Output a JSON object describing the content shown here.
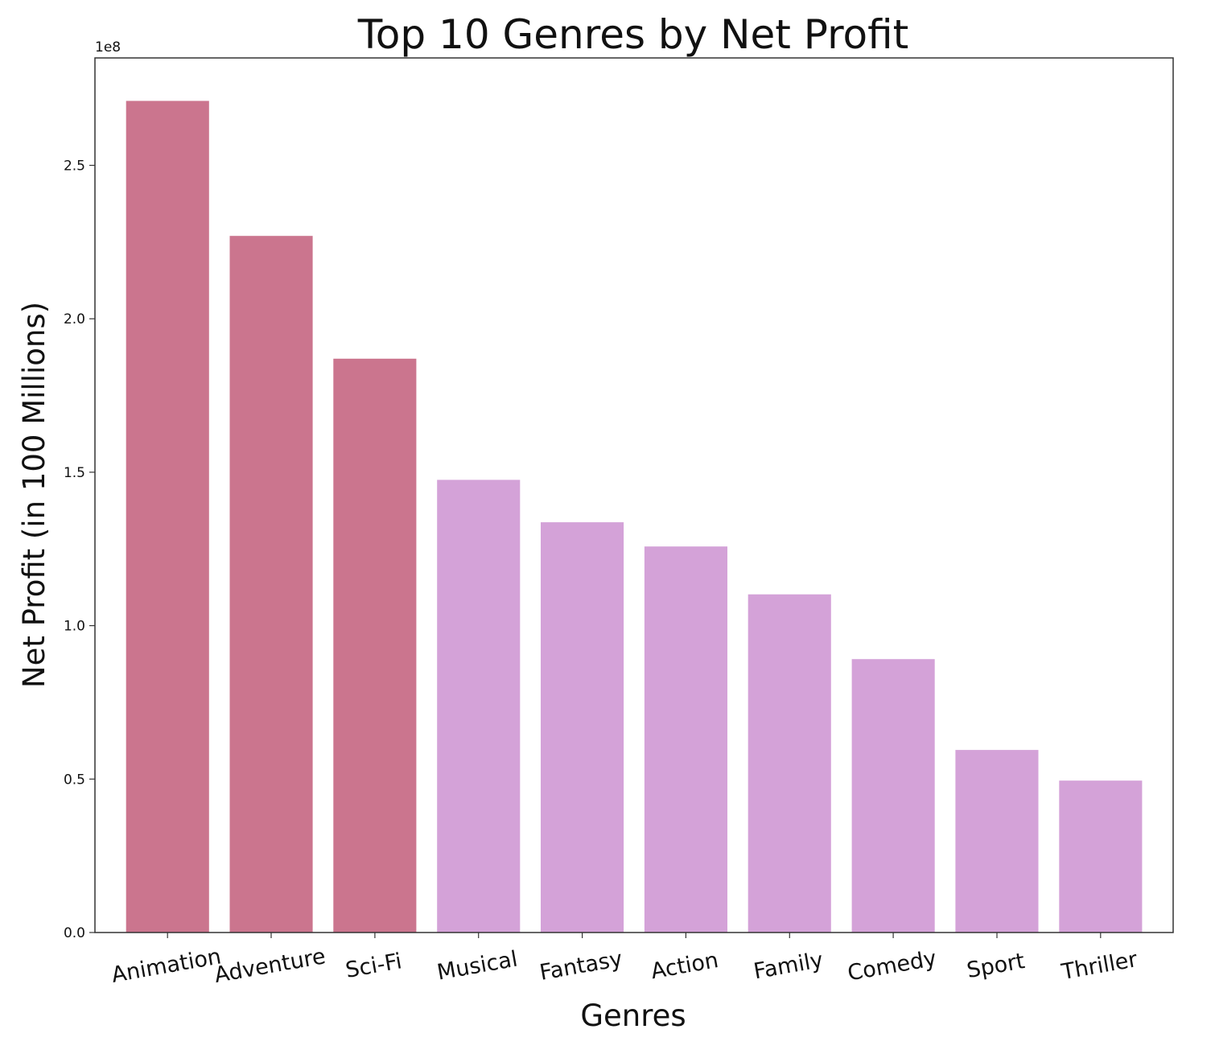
{
  "chart_data": {
    "type": "bar",
    "title": "Top 10 Genres by Net Profit",
    "xlabel": "Genres",
    "ylabel": "Net Profit (in 100 Millions)",
    "y_offset_label": "1e8",
    "categories": [
      "Animation",
      "Adventure",
      "Sci-Fi",
      "Musical",
      "Fantasy",
      "Action",
      "Family",
      "Comedy",
      "Sport",
      "Thriller"
    ],
    "values": [
      271000000,
      227000000,
      187000000,
      147500000,
      133700000,
      125800000,
      110200000,
      89100000,
      59500000,
      49500000
    ],
    "colors": [
      "#cb758e",
      "#cb758e",
      "#cb758e",
      "#d4a2d8",
      "#d4a2d8",
      "#d4a2d8",
      "#d4a2d8",
      "#d4a2d8",
      "#d4a2d8",
      "#d4a2d8"
    ],
    "ylim": [
      0,
      285000000
    ],
    "yticks": [
      0,
      50000000,
      100000000,
      150000000,
      200000000,
      250000000
    ],
    "ytick_labels": [
      "0.0",
      "0.5",
      "1.0",
      "1.5",
      "2.0",
      "2.5"
    ],
    "grid": false,
    "legend": "none"
  }
}
